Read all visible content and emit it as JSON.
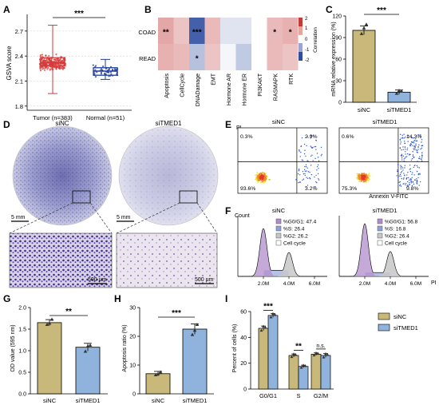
{
  "panels": {
    "A": {
      "letter": "A",
      "chart_data": {
        "type": "box",
        "ylabel": "GSVA score",
        "ylim": [
          1.75,
          2.9
        ],
        "yticks": [
          "2.7",
          "2.4",
          "2.1",
          "1.8"
        ],
        "categories": [
          "Tumor (n=383)",
          "Normal (n=51)"
        ],
        "boxes": [
          {
            "label": "Tumor (n=383)",
            "min": 1.95,
            "q1": 2.28,
            "median": 2.32,
            "q3": 2.38,
            "max": 2.77,
            "color": "#d43a3a"
          },
          {
            "label": "Normal (n=51)",
            "min": 2.12,
            "q1": 2.17,
            "median": 2.22,
            "q3": 2.26,
            "max": 2.36,
            "color": "#1f3c99"
          }
        ],
        "significance": "***"
      }
    },
    "B": {
      "letter": "B",
      "chart_data": {
        "type": "heatmap",
        "rows": [
          "COAD",
          "READ"
        ],
        "columns": [
          "Apoptosis",
          "CellCycle",
          "DNADamage",
          "EMT",
          "Hormone AR",
          "Hormone ER",
          "PI3KAKT",
          "RASMAPK",
          "RTK"
        ],
        "values": [
          [
            0.9,
            0.6,
            -1.8,
            0.7,
            -0.3,
            -0.3,
            0.0,
            0.7,
            0.8
          ],
          [
            0.8,
            0.7,
            -0.7,
            0.6,
            -0.1,
            -0.6,
            0.0,
            0.7,
            0.6
          ]
        ],
        "stars": [
          [
            "**",
            "",
            "***",
            "",
            "",
            "",
            "",
            "*",
            "*"
          ],
          [
            "",
            "",
            "*",
            "",
            "",
            "",
            "",
            "",
            ""
          ]
        ],
        "colorbar": {
          "label": "Correlation",
          "ticks": [
            "2",
            "1",
            "0",
            "-1",
            "-2"
          ],
          "range": [
            -2,
            2
          ]
        }
      }
    },
    "C": {
      "letter": "C",
      "chart_data": {
        "type": "bar",
        "ylabel": "mRNA relative expression (%)",
        "ylim": [
          0,
          120
        ],
        "yticks": [
          "120",
          "90",
          "60",
          "30",
          "0"
        ],
        "categories": [
          "siNC",
          "siTMED1"
        ],
        "values": [
          100,
          14
        ],
        "errors": [
          6,
          3
        ],
        "points": [
          [
            95,
            108,
            103
          ],
          [
            12,
            15,
            16
          ]
        ],
        "colors": [
          "#c8b97a",
          "#8fb3dc"
        ],
        "significance": "***"
      }
    },
    "D": {
      "letter": "D",
      "titles": [
        "siNC",
        "siTMED1"
      ],
      "scale_top": "5 mm",
      "scale_bottom": "500 μm"
    },
    "E": {
      "letter": "E",
      "titles": [
        "siNC",
        "siTMED1"
      ],
      "yaxis": "PI",
      "xaxis": "Annexin V-FITC",
      "quadrants": [
        {
          "ul": "0.3%",
          "ur": "2.9%",
          "ll": "93.6%",
          "lr": "3.2%"
        },
        {
          "ul": "0.6%",
          "ur": "14.3%",
          "ll": "75.3%",
          "lr": "9.8%"
        }
      ]
    },
    "F": {
      "letter": "F",
      "titles": [
        "siNC",
        "siTMED1"
      ],
      "yaxis": "Count",
      "xaxis": "PI",
      "xticks": [
        "2.0M",
        "4.0M",
        "6.0M"
      ],
      "legends": [
        [
          "%G0/G1: 47.4",
          "%S: 26.4",
          "%G2: 26.2",
          "Cell cycle"
        ],
        [
          "%G0/G1: 56.8",
          "%S: 16.8",
          "%G2: 26.4",
          "Cell cycle"
        ]
      ]
    },
    "G": {
      "letter": "G",
      "chart_data": {
        "type": "bar",
        "ylabel": "OD value (595 nm)",
        "ylim": [
          0,
          2.0
        ],
        "yticks": [
          "2.0",
          "1.5",
          "1.0",
          "0.5",
          "0.0"
        ],
        "categories": [
          "siNC",
          "siTMED1"
        ],
        "values": [
          1.65,
          1.08
        ],
        "errors": [
          0.07,
          0.09
        ],
        "points": [
          [
            1.6,
            1.72,
            1.63
          ],
          [
            0.98,
            1.12,
            1.1
          ]
        ],
        "colors": [
          "#c8b97a",
          "#8fb3dc"
        ],
        "significance": "**"
      }
    },
    "H": {
      "letter": "H",
      "chart_data": {
        "type": "bar",
        "ylabel": "Apoptosis ratio (%)",
        "ylim": [
          0,
          30
        ],
        "yticks": [
          "30",
          "20",
          "10",
          "0"
        ],
        "categories": [
          "siNC",
          "siTMED1"
        ],
        "values": [
          7,
          22.5
        ],
        "errors": [
          0.8,
          1.8
        ],
        "points": [
          [
            6.5,
            7.5,
            6.8
          ],
          [
            20.5,
            24,
            22
          ]
        ],
        "colors": [
          "#c8b97a",
          "#8fb3dc"
        ],
        "significance": "***"
      }
    },
    "I": {
      "letter": "I",
      "chart_data": {
        "type": "bar",
        "ylabel": "Percent of cells (%)",
        "ylim": [
          0,
          60
        ],
        "yticks": [
          "60",
          "40",
          "20",
          "0"
        ],
        "categories": [
          "G0/G1",
          "S",
          "G2/M"
        ],
        "series": [
          {
            "name": "siNC",
            "values": [
              47,
              26,
              27
            ],
            "color": "#c8b97a"
          },
          {
            "name": "siTMED1",
            "values": [
              57,
              17.5,
              26
            ],
            "color": "#8fb3dc"
          }
        ],
        "errors": [
          [
            1.8,
            1.2,
            1.0
          ],
          [
            1.5,
            1.0,
            1.5
          ]
        ],
        "significance": [
          "***",
          "**",
          "n.s."
        ],
        "legend": "top-right"
      }
    }
  }
}
